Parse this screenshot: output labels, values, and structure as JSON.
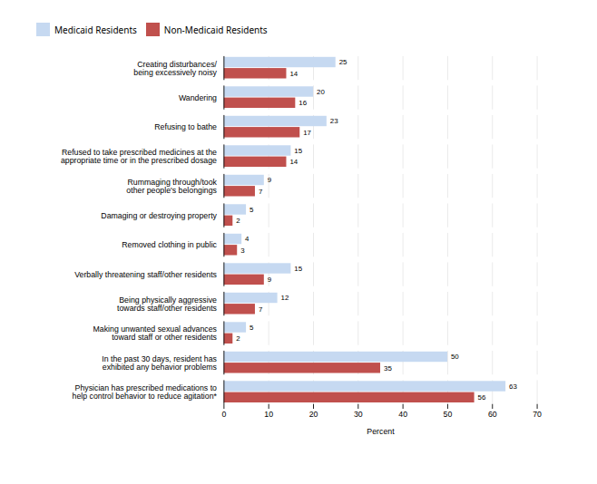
{
  "chart_data": {
    "type": "bar",
    "orientation": "horizontal",
    "categories": [
      "Creating disturbances/\nbeing excessively noisy",
      "Wandering",
      "Refusing to bathe",
      "Refused to take prescribed medicines at the\nappropriate time or in the prescribed dosage",
      "Rummaging through/took\nother people's belongings",
      "Damaging or destroying property",
      "Removed clothing in public",
      "Verbally threatening staff/other residents",
      "Being physically aggressive\ntowards staff/other residents",
      "Making unwanted sexual advances\ntoward staff or other residents",
      "In the past 30 days, resident has\nexhibited any behavior problems",
      "Physician has prescribed medications to\nhelp control behavior to reduce agitation*"
    ],
    "series": [
      {
        "name": "Medicaid Residents",
        "color": "#c6d9f1",
        "values": [
          25,
          20,
          23,
          15,
          9,
          5,
          4,
          15,
          12,
          5,
          50,
          63
        ]
      },
      {
        "name": "Non-Medicaid Residents",
        "color": "#c0504d",
        "values": [
          14,
          16,
          17,
          14,
          7,
          2,
          3,
          9,
          7,
          2,
          35,
          56
        ]
      }
    ],
    "xlim": [
      0,
      70
    ],
    "xticks": [
      0,
      10,
      20,
      30,
      40,
      50,
      60,
      70
    ],
    "xlabel": "Percent",
    "grid": true,
    "legend": "top",
    "data_labels": true
  }
}
